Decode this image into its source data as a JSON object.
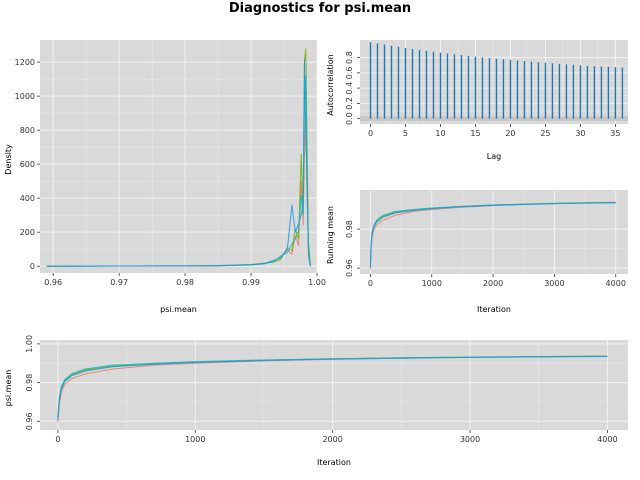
{
  "title": "Diagnostics for psi.mean",
  "colors": {
    "panel_bg": "#d9d9d9",
    "grid": "#f2f2f2",
    "chain1": "#f8766d",
    "chain2": "#7cae00",
    "chain3": "#00bfc4",
    "chain4": "#1f9bde",
    "acf": "#1f78b4",
    "band": "#bfbfbf"
  },
  "chart_data": [
    {
      "id": "density",
      "type": "line",
      "title": "",
      "xlabel": "psi.mean",
      "ylabel": "Density",
      "xlim": [
        0.958,
        1.0
      ],
      "ylim": [
        -40,
        1330
      ],
      "xticks": [
        0.96,
        0.97,
        0.98,
        0.99,
        1.0
      ],
      "xtick_labels": [
        "0.96",
        "0.97",
        "0.98",
        "0.99",
        "1.00"
      ],
      "yticks": [
        0,
        200,
        400,
        600,
        800,
        1000,
        1200
      ],
      "series": [
        {
          "points": [
            [
              0.959,
              0
            ],
            [
              0.97,
              1
            ],
            [
              0.98,
              2
            ],
            [
              0.985,
              3
            ],
            [
              0.99,
              8
            ],
            [
              0.992,
              15
            ],
            [
              0.9935,
              30
            ],
            [
              0.9945,
              55
            ],
            [
              0.9955,
              95
            ],
            [
              0.9962,
              70
            ],
            [
              0.9967,
              180
            ],
            [
              0.9972,
              120
            ],
            [
              0.9976,
              500
            ],
            [
              0.9979,
              240
            ],
            [
              0.9981,
              650
            ],
            [
              0.9983,
              900
            ],
            [
              0.9985,
              400
            ],
            [
              0.9987,
              120
            ],
            [
              0.999,
              0
            ]
          ]
        },
        {
          "points": [
            [
              0.959,
              0
            ],
            [
              0.97,
              1
            ],
            [
              0.98,
              2
            ],
            [
              0.985,
              4
            ],
            [
              0.99,
              10
            ],
            [
              0.992,
              18
            ],
            [
              0.9935,
              25
            ],
            [
              0.9945,
              40
            ],
            [
              0.9955,
              110
            ],
            [
              0.9962,
              90
            ],
            [
              0.9967,
              220
            ],
            [
              0.9972,
              160
            ],
            [
              0.9976,
              660
            ],
            [
              0.9979,
              320
            ],
            [
              0.9981,
              1200
            ],
            [
              0.9983,
              1280
            ],
            [
              0.9985,
              700
            ],
            [
              0.9987,
              150
            ],
            [
              0.999,
              0
            ]
          ]
        },
        {
          "points": [
            [
              0.959,
              0
            ],
            [
              0.97,
              1
            ],
            [
              0.98,
              2
            ],
            [
              0.985,
              3
            ],
            [
              0.99,
              7
            ],
            [
              0.992,
              14
            ],
            [
              0.9935,
              28
            ],
            [
              0.9945,
              60
            ],
            [
              0.9955,
              80
            ],
            [
              0.9962,
              130
            ],
            [
              0.9967,
              160
            ],
            [
              0.9972,
              210
            ],
            [
              0.9976,
              420
            ],
            [
              0.9979,
              300
            ],
            [
              0.9981,
              930
            ],
            [
              0.9983,
              1120
            ],
            [
              0.9985,
              500
            ],
            [
              0.9987,
              60
            ],
            [
              0.999,
              0
            ]
          ]
        },
        {
          "points": [
            [
              0.959,
              0
            ],
            [
              0.97,
              1
            ],
            [
              0.98,
              2
            ],
            [
              0.985,
              3
            ],
            [
              0.99,
              9
            ],
            [
              0.992,
              16
            ],
            [
              0.9935,
              35
            ],
            [
              0.9945,
              50
            ],
            [
              0.9955,
              100
            ],
            [
              0.9962,
              360
            ],
            [
              0.9967,
              200
            ],
            [
              0.9972,
              250
            ],
            [
              0.9976,
              300
            ],
            [
              0.9979,
              380
            ],
            [
              0.9981,
              1220
            ],
            [
              0.9983,
              800
            ],
            [
              0.9985,
              450
            ],
            [
              0.9987,
              90
            ],
            [
              0.999,
              0
            ]
          ]
        }
      ]
    },
    {
      "id": "acf",
      "type": "bar",
      "title": "",
      "xlabel": "Lag",
      "ylabel": "Autocorrelation",
      "xlim": [
        -1.5,
        36.8
      ],
      "ylim": [
        -0.07,
        1.03
      ],
      "xticks": [
        0,
        5,
        10,
        15,
        20,
        25,
        30,
        35
      ],
      "yticks": [
        0.0,
        0.2,
        0.4,
        0.6,
        0.8
      ],
      "ytick_labels": [
        "0.0",
        "0.2",
        "0.4",
        "0.6",
        "0.8"
      ],
      "band": [
        -0.03,
        0.03
      ],
      "lags": [
        0,
        1,
        2,
        3,
        4,
        5,
        6,
        7,
        8,
        9,
        10,
        11,
        12,
        13,
        14,
        15,
        16,
        17,
        18,
        19,
        20,
        21,
        22,
        23,
        24,
        25,
        26,
        27,
        28,
        29,
        30,
        31,
        32,
        33,
        34,
        35,
        36
      ],
      "values": [
        1.0,
        0.985,
        0.97,
        0.955,
        0.94,
        0.926,
        0.913,
        0.9,
        0.888,
        0.876,
        0.864,
        0.853,
        0.842,
        0.832,
        0.822,
        0.812,
        0.803,
        0.794,
        0.785,
        0.777,
        0.769,
        0.761,
        0.753,
        0.746,
        0.739,
        0.732,
        0.725,
        0.718,
        0.712,
        0.706,
        0.7,
        0.694,
        0.688,
        0.683,
        0.678,
        0.673,
        0.668
      ]
    },
    {
      "id": "running_mean",
      "type": "line",
      "title": "",
      "xlabel": "Iteration",
      "ylabel": "Running mean",
      "xlim": [
        -170,
        4200
      ],
      "ylim": [
        0.957,
        1.0
      ],
      "xticks": [
        0,
        1000,
        2000,
        3000,
        4000
      ],
      "yticks": [
        0.96,
        0.98
      ],
      "ytick_labels": [
        "0.96",
        "0.98"
      ],
      "series": [
        {
          "points": [
            [
              0,
              0.9595
            ],
            [
              10,
              0.968
            ],
            [
              25,
              0.975
            ],
            [
              50,
              0.979
            ],
            [
              100,
              0.982
            ],
            [
              200,
              0.9845
            ],
            [
              400,
              0.987
            ],
            [
              700,
              0.989
            ],
            [
              1000,
              0.99
            ],
            [
              1500,
              0.9912
            ],
            [
              2000,
              0.992
            ],
            [
              2500,
              0.9926
            ],
            [
              3000,
              0.993
            ],
            [
              3500,
              0.9933
            ],
            [
              4000,
              0.9935
            ]
          ]
        },
        {
          "points": [
            [
              0,
              0.961
            ],
            [
              10,
              0.971
            ],
            [
              25,
              0.977
            ],
            [
              50,
              0.981
            ],
            [
              100,
              0.984
            ],
            [
              200,
              0.9865
            ],
            [
              400,
              0.9885
            ],
            [
              700,
              0.9898
            ],
            [
              1000,
              0.9906
            ],
            [
              1500,
              0.9916
            ],
            [
              2000,
              0.9923
            ],
            [
              2500,
              0.9928
            ],
            [
              3000,
              0.9932
            ],
            [
              3500,
              0.9935
            ],
            [
              4000,
              0.9937
            ]
          ]
        },
        {
          "points": [
            [
              0,
              0.962
            ],
            [
              10,
              0.972
            ],
            [
              25,
              0.978
            ],
            [
              50,
              0.9815
            ],
            [
              100,
              0.9845
            ],
            [
              200,
              0.987
            ],
            [
              400,
              0.989
            ],
            [
              700,
              0.99
            ],
            [
              1000,
              0.9908
            ],
            [
              1500,
              0.9917
            ],
            [
              2000,
              0.9923
            ],
            [
              2500,
              0.9928
            ],
            [
              3000,
              0.9931
            ],
            [
              3500,
              0.9934
            ],
            [
              4000,
              0.9936
            ]
          ]
        },
        {
          "points": [
            [
              0,
              0.9605
            ],
            [
              10,
              0.9705
            ],
            [
              25,
              0.9765
            ],
            [
              50,
              0.9805
            ],
            [
              100,
              0.9835
            ],
            [
              200,
              0.986
            ],
            [
              400,
              0.9882
            ],
            [
              700,
              0.9895
            ],
            [
              1000,
              0.9904
            ],
            [
              1500,
              0.9914
            ],
            [
              2000,
              0.9921
            ],
            [
              2500,
              0.9926
            ],
            [
              3000,
              0.993
            ],
            [
              3500,
              0.9933
            ],
            [
              4000,
              0.9935
            ]
          ]
        }
      ]
    },
    {
      "id": "trace",
      "type": "line",
      "title": "",
      "xlabel": "Iteration",
      "ylabel": "psi.mean",
      "xlim": [
        -130,
        4150
      ],
      "ylim": [
        0.9555,
        1.002
      ],
      "xticks": [
        0,
        1000,
        2000,
        3000,
        4000
      ],
      "yticks": [
        0.96,
        0.98,
        1.0
      ],
      "ytick_labels": [
        "0.96",
        "0.98",
        "1.00"
      ],
      "extra_ytick_labels": [
        {
          "v": 0.98,
          "label": "0.98"
        }
      ],
      "series": [
        {
          "points": [
            [
              0,
              0.9595
            ],
            [
              10,
              0.968
            ],
            [
              25,
              0.975
            ],
            [
              50,
              0.979
            ],
            [
              100,
              0.982
            ],
            [
              200,
              0.9845
            ],
            [
              400,
              0.987
            ],
            [
              700,
              0.989
            ],
            [
              1000,
              0.99
            ],
            [
              1500,
              0.9912
            ],
            [
              2000,
              0.992
            ],
            [
              2500,
              0.9926
            ],
            [
              3000,
              0.993
            ],
            [
              3500,
              0.9933
            ],
            [
              4000,
              0.9935
            ]
          ]
        },
        {
          "points": [
            [
              0,
              0.961
            ],
            [
              10,
              0.971
            ],
            [
              25,
              0.977
            ],
            [
              50,
              0.981
            ],
            [
              100,
              0.984
            ],
            [
              200,
              0.9865
            ],
            [
              400,
              0.9885
            ],
            [
              700,
              0.9898
            ],
            [
              1000,
              0.9906
            ],
            [
              1500,
              0.9916
            ],
            [
              2000,
              0.9923
            ],
            [
              2500,
              0.9928
            ],
            [
              3000,
              0.9932
            ],
            [
              3500,
              0.9935
            ],
            [
              4000,
              0.9937
            ]
          ]
        },
        {
          "points": [
            [
              0,
              0.962
            ],
            [
              10,
              0.972
            ],
            [
              25,
              0.978
            ],
            [
              50,
              0.9815
            ],
            [
              100,
              0.9845
            ],
            [
              200,
              0.987
            ],
            [
              400,
              0.989
            ],
            [
              700,
              0.99
            ],
            [
              1000,
              0.9908
            ],
            [
              1500,
              0.9917
            ],
            [
              2000,
              0.9923
            ],
            [
              2500,
              0.9928
            ],
            [
              3000,
              0.9931
            ],
            [
              3500,
              0.9934
            ],
            [
              4000,
              0.9936
            ]
          ]
        },
        {
          "points": [
            [
              0,
              0.9605
            ],
            [
              10,
              0.9705
            ],
            [
              25,
              0.9765
            ],
            [
              50,
              0.9805
            ],
            [
              100,
              0.9835
            ],
            [
              200,
              0.986
            ],
            [
              400,
              0.9882
            ],
            [
              700,
              0.9895
            ],
            [
              1000,
              0.9904
            ],
            [
              1500,
              0.9914
            ],
            [
              2000,
              0.9921
            ],
            [
              2500,
              0.9926
            ],
            [
              3000,
              0.993
            ],
            [
              3500,
              0.9933
            ],
            [
              4000,
              0.9935
            ]
          ]
        }
      ]
    }
  ]
}
